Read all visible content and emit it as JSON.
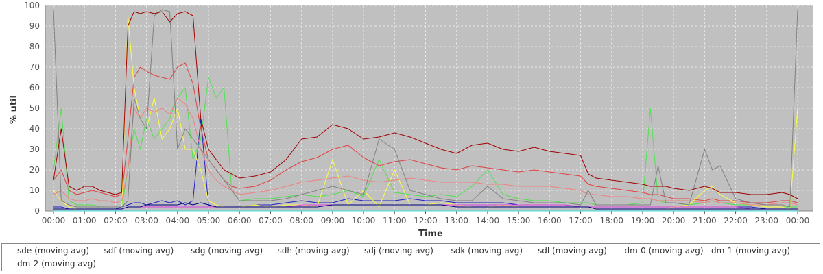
{
  "chart_data": {
    "type": "line",
    "ylabel": "% util",
    "xlabel": "Time",
    "ylim": [
      0,
      100
    ],
    "yticks": [
      0,
      10,
      20,
      30,
      40,
      50,
      60,
      70,
      80,
      90,
      100
    ],
    "xticks": [
      "00:00",
      "01:00",
      "02:00",
      "03:00",
      "04:00",
      "05:00",
      "06:00",
      "07:00",
      "08:00",
      "09:00",
      "10:00",
      "11:00",
      "12:00",
      "13:00",
      "14:00",
      "15:00",
      "16:00",
      "17:00",
      "18:00",
      "19:00",
      "20:00",
      "21:00",
      "22:00",
      "23:00",
      "00:00"
    ],
    "grid": true,
    "legend_position": "bottom",
    "plot_background": "#c0c0c0",
    "x_hours": [
      0,
      0.25,
      0.5,
      0.75,
      1,
      1.25,
      1.5,
      1.75,
      2,
      2.2,
      2.4,
      2.6,
      2.8,
      3,
      3.25,
      3.5,
      3.75,
      4,
      4.25,
      4.5,
      4.75,
      5,
      5.25,
      5.5,
      5.75,
      6,
      6.5,
      7,
      7.5,
      8,
      8.5,
      9,
      9.5,
      10,
      10.5,
      11,
      11.5,
      12,
      12.5,
      13,
      13.5,
      14,
      14.5,
      15,
      15.5,
      16,
      16.5,
      17,
      17.25,
      17.5,
      18,
      18.5,
      19,
      19.25,
      19.5,
      19.75,
      20,
      20.5,
      21,
      21.25,
      21.5,
      22,
      22.5,
      23,
      23.5,
      23.75,
      24
    ],
    "series": [
      {
        "name": "sde (moving avg)",
        "color": "#e04040",
        "values": [
          15,
          20,
          10,
          8,
          9,
          10,
          9,
          8,
          7,
          8,
          35,
          65,
          70,
          68,
          66,
          65,
          64,
          70,
          72,
          62,
          40,
          25,
          20,
          15,
          12,
          11,
          12,
          15,
          20,
          24,
          26,
          30,
          32,
          26,
          22,
          24,
          25,
          23,
          21,
          20,
          22,
          21,
          20,
          19,
          20,
          19,
          18,
          17,
          13,
          12,
          11,
          10,
          9,
          8,
          8,
          7,
          6,
          6,
          5,
          6,
          5,
          5,
          4,
          4,
          5,
          5,
          4
        ]
      },
      {
        "name": "sdf (moving avg)",
        "color": "#2020c0",
        "values": [
          2,
          2,
          1,
          1,
          1,
          1,
          1,
          1,
          1,
          2,
          3,
          4,
          4,
          3,
          4,
          5,
          4,
          5,
          3,
          5,
          45,
          3,
          2,
          2,
          2,
          2,
          3,
          3,
          4,
          5,
          4,
          4,
          6,
          5,
          5,
          5,
          6,
          5,
          5,
          4,
          4,
          4,
          4,
          3,
          3,
          3,
          3,
          2,
          2,
          2,
          2,
          2,
          2,
          2,
          2,
          2,
          2,
          2,
          2,
          2,
          2,
          2,
          2,
          1,
          1,
          1,
          1
        ]
      },
      {
        "name": "sdg (moving avg)",
        "color": "#50e050",
        "values": [
          20,
          50,
          5,
          3,
          3,
          3,
          2,
          2,
          2,
          2,
          20,
          40,
          30,
          45,
          35,
          40,
          45,
          55,
          60,
          25,
          35,
          65,
          55,
          60,
          10,
          5,
          6,
          6,
          7,
          8,
          7,
          8,
          10,
          7,
          25,
          9,
          8,
          7,
          8,
          7,
          12,
          20,
          8,
          6,
          5,
          5,
          4,
          4,
          4,
          3,
          3,
          3,
          4,
          50,
          5,
          4,
          4,
          3,
          4,
          5,
          4,
          3,
          3,
          2,
          2,
          2,
          2
        ]
      },
      {
        "name": "sdh (moving avg)",
        "color": "#ffff40",
        "values": [
          10,
          5,
          2,
          1,
          1,
          1,
          1,
          1,
          1,
          1,
          95,
          60,
          45,
          40,
          55,
          35,
          40,
          50,
          30,
          30,
          20,
          5,
          3,
          2,
          2,
          2,
          3,
          2,
          3,
          3,
          2,
          25,
          3,
          10,
          2,
          20,
          3,
          3,
          4,
          3,
          2,
          2,
          3,
          2,
          2,
          2,
          2,
          2,
          2,
          1,
          1,
          1,
          1,
          1,
          1,
          1,
          2,
          3,
          10,
          12,
          8,
          4,
          3,
          2,
          2,
          1,
          50
        ]
      },
      {
        "name": "sdj (moving avg)",
        "color": "#e040e0",
        "values": [
          1,
          1,
          1,
          1,
          1,
          1,
          1,
          1,
          1,
          1,
          2,
          2,
          2,
          2,
          2,
          2,
          2,
          2,
          2,
          2,
          2,
          2,
          2,
          2,
          2,
          2,
          2,
          2,
          2,
          3,
          3,
          3,
          3,
          3,
          3,
          3,
          3,
          3,
          3,
          3,
          3,
          3,
          3,
          3,
          3,
          3,
          3,
          2,
          2,
          2,
          2,
          2,
          2,
          2,
          2,
          2,
          2,
          2,
          2,
          2,
          2,
          2,
          1,
          1,
          1,
          1,
          1
        ]
      },
      {
        "name": "sdk (moving avg)",
        "color": "#40e0e0",
        "values": [
          0,
          0,
          0,
          0,
          0,
          0,
          0,
          0,
          0,
          0,
          0,
          0,
          0,
          0,
          0,
          0,
          0,
          0,
          0,
          0,
          0,
          0,
          0,
          0,
          0,
          0,
          0,
          0,
          0,
          0,
          0,
          0,
          0,
          0,
          0,
          0,
          0,
          0,
          0,
          0,
          0,
          0,
          0,
          0,
          0,
          0,
          0,
          0,
          0,
          0,
          0,
          0,
          0,
          0,
          0,
          0,
          0,
          0,
          0,
          0,
          0,
          0,
          0,
          0,
          0,
          0,
          0
        ]
      },
      {
        "name": "sdl (moving avg)",
        "color": "#f08080",
        "values": [
          8,
          10,
          6,
          5,
          5,
          6,
          5,
          5,
          4,
          5,
          20,
          50,
          45,
          50,
          48,
          50,
          47,
          55,
          52,
          45,
          30,
          20,
          15,
          12,
          10,
          8,
          9,
          10,
          12,
          14,
          15,
          16,
          17,
          15,
          14,
          15,
          16,
          15,
          14,
          14,
          14,
          13,
          13,
          12,
          12,
          12,
          11,
          10,
          8,
          8,
          7,
          7,
          6,
          6,
          5,
          5,
          5,
          5,
          4,
          5,
          4,
          4,
          3,
          3,
          4,
          4,
          3
        ]
      },
      {
        "name": "dm-0 (moving avg)",
        "color": "#808080",
        "values": [
          98,
          5,
          3,
          2,
          2,
          2,
          2,
          2,
          2,
          2,
          5,
          55,
          45,
          40,
          95,
          98,
          97,
          30,
          40,
          35,
          30,
          25,
          20,
          15,
          10,
          5,
          5,
          5,
          6,
          8,
          10,
          12,
          10,
          8,
          35,
          30,
          10,
          8,
          6,
          5,
          5,
          12,
          6,
          5,
          4,
          4,
          4,
          3,
          10,
          3,
          3,
          3,
          3,
          3,
          22,
          4,
          4,
          3,
          30,
          20,
          22,
          6,
          4,
          3,
          3,
          2,
          98
        ]
      },
      {
        "name": "dm-1 (moving avg)",
        "color": "#a00000",
        "values": [
          15,
          40,
          12,
          10,
          12,
          12,
          10,
          9,
          8,
          9,
          90,
          97,
          96,
          97,
          96,
          97,
          92,
          96,
          97,
          95,
          45,
          30,
          25,
          20,
          18,
          16,
          17,
          19,
          25,
          35,
          36,
          42,
          40,
          35,
          36,
          38,
          36,
          33,
          30,
          28,
          32,
          33,
          30,
          29,
          31,
          29,
          28,
          27,
          18,
          16,
          15,
          14,
          13,
          12,
          12,
          12,
          11,
          10,
          12,
          11,
          9,
          9,
          8,
          8,
          9,
          8,
          6
        ]
      },
      {
        "name": "dm-2 (moving avg)",
        "color": "#000080",
        "values": [
          1,
          1,
          1,
          1,
          1,
          1,
          1,
          1,
          1,
          1,
          2,
          2,
          2,
          3,
          3,
          3,
          3,
          3,
          4,
          3,
          4,
          3,
          2,
          2,
          2,
          2,
          2,
          2,
          2,
          2,
          2,
          3,
          3,
          3,
          3,
          3,
          3,
          3,
          3,
          2,
          2,
          2,
          2,
          2,
          2,
          2,
          2,
          2,
          2,
          1,
          1,
          1,
          1,
          1,
          1,
          1,
          1,
          1,
          1,
          1,
          1,
          1,
          1,
          1,
          1,
          1,
          1
        ]
      }
    ]
  }
}
